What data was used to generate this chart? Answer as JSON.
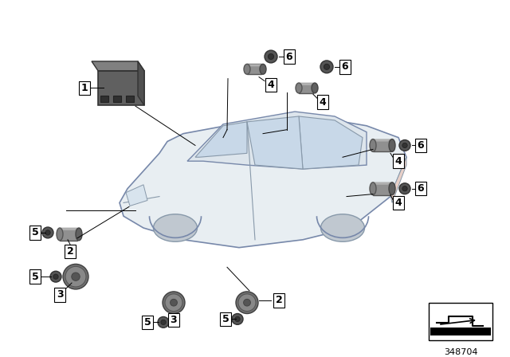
{
  "title": "",
  "bg_color": "#ffffff",
  "part_number": "348704",
  "fig_width": 6.4,
  "fig_height": 4.48,
  "dpi": 100,
  "car_color": "#d0d8e0",
  "car_outline_color": "#8899aa",
  "component_color": "#888888",
  "component_dark": "#555555",
  "label_color": "#000000",
  "line_color": "#000000"
}
